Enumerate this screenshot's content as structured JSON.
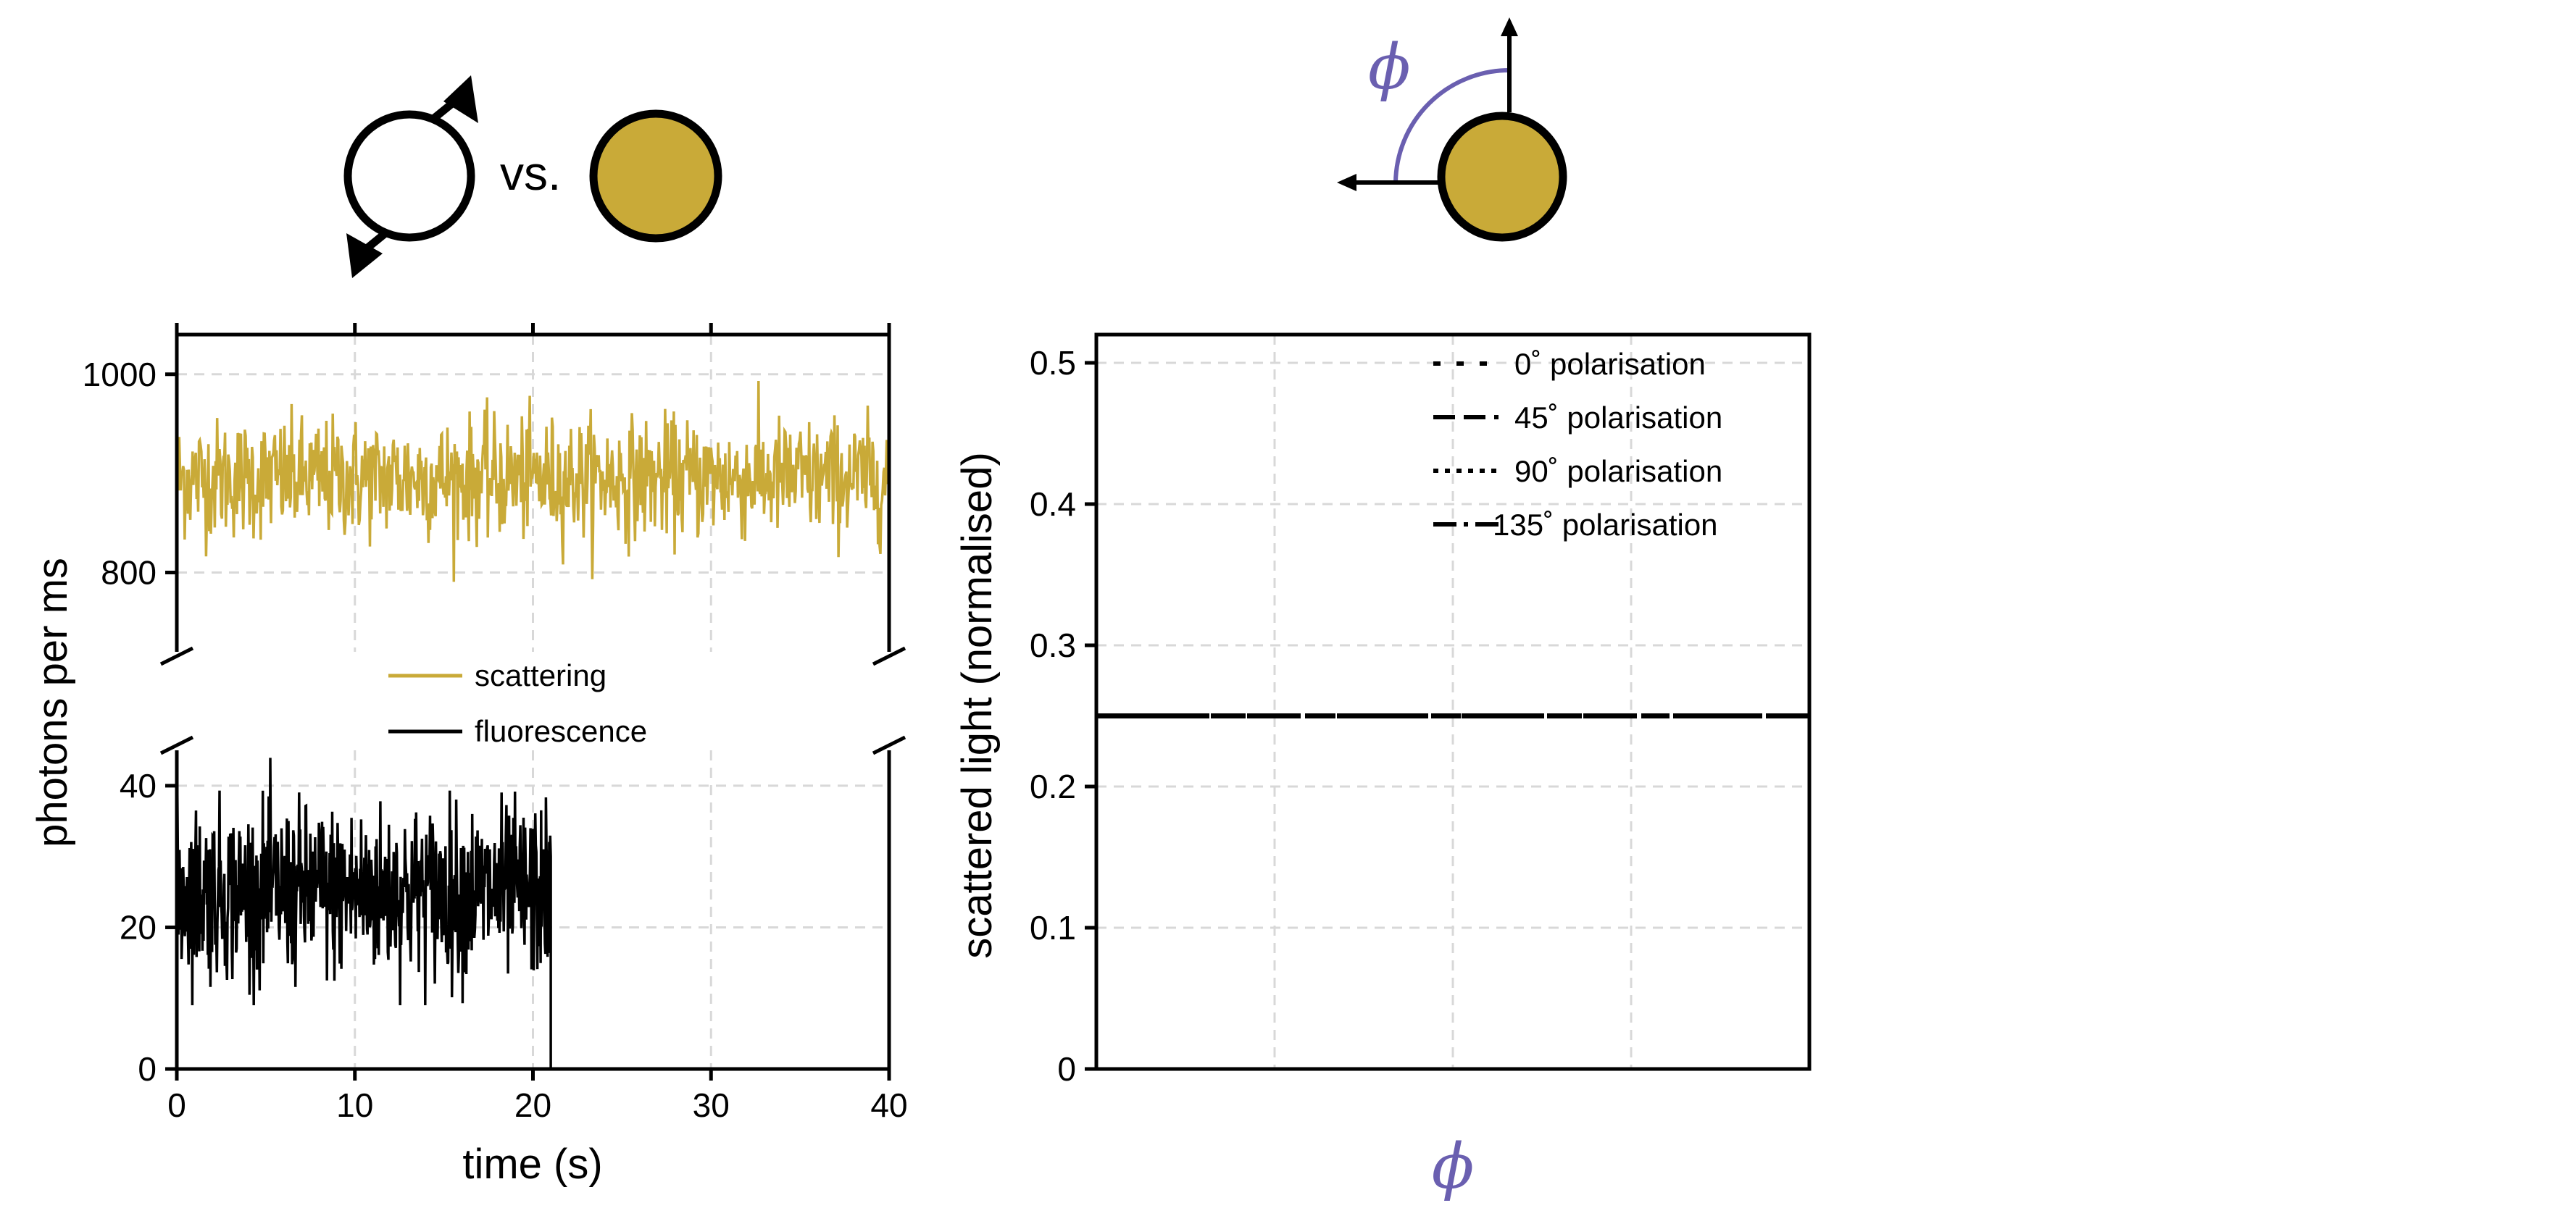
{
  "colors": {
    "scattering": "#c9aa38",
    "fluorescence": "#000000",
    "angle_accent": "#6a5fb0",
    "particle_fill": "#c9aa38",
    "grid": "#d8d8d8"
  },
  "icons": {
    "left_text": "vs.",
    "left_first": "dipole-emitter-icon",
    "left_second": "gold-particle-icon",
    "right": "gold-particle-polarisation-angle-icon",
    "right_angle_symbol": "ϕ"
  },
  "chart_data": [
    {
      "type": "line",
      "broken_y_axis": true,
      "xlabel": "time (s)",
      "ylabel": "photons per ms",
      "xlim": [
        0,
        40
      ],
      "x_ticks": [
        0,
        10,
        20,
        30,
        40
      ],
      "y_segments": [
        {
          "ylim": [
            0,
            45
          ],
          "ticks": [
            0,
            20,
            40
          ]
        },
        {
          "ylim": [
            720,
            1040
          ],
          "ticks": [
            800,
            1000
          ]
        }
      ],
      "grid": true,
      "legend_position": "center",
      "series": [
        {
          "name": "scattering",
          "color": "#c9aa38",
          "x_range": [
            0,
            40
          ],
          "mean": 895,
          "noise_std": 30,
          "min_observed": 778,
          "max_observed": 1008
        },
        {
          "name": "fluorescence",
          "color": "#000000",
          "x_range": [
            0,
            21
          ],
          "mean": 25,
          "noise_std": 6,
          "min_observed": 9,
          "max_observed": 45,
          "after_end_value": 0
        }
      ]
    },
    {
      "type": "line",
      "xlabel": "ϕ",
      "ylabel": "scattered light (normalised)",
      "ylim": [
        0,
        0.52
      ],
      "y_ticks": [
        0,
        0.1,
        0.2,
        0.3,
        0.4,
        0.5
      ],
      "y_tick_labels": [
        "0",
        "0.1",
        "0.2",
        "0.3",
        "0.4",
        "0.5"
      ],
      "xlim": [
        0,
        1
      ],
      "x_tick_labels_shown": false,
      "grid": true,
      "legend_position": "top-right",
      "series": [
        {
          "name": "0˚ polarisation",
          "dash": "dotted-sparse",
          "x": [
            0,
            1
          ],
          "y": [
            0.25,
            0.25
          ]
        },
        {
          "name": "45˚ polarisation",
          "dash": "dashed",
          "x": [
            0,
            1
          ],
          "y": [
            0.25,
            0.25
          ]
        },
        {
          "name": "90˚ polarisation",
          "dash": "dotted",
          "x": [
            0,
            1
          ],
          "y": [
            0.25,
            0.25
          ]
        },
        {
          "name": "135˚ polarisation",
          "dash": "dashdot",
          "x": [
            0,
            1
          ],
          "y": [
            0.25,
            0.25
          ]
        }
      ]
    }
  ]
}
